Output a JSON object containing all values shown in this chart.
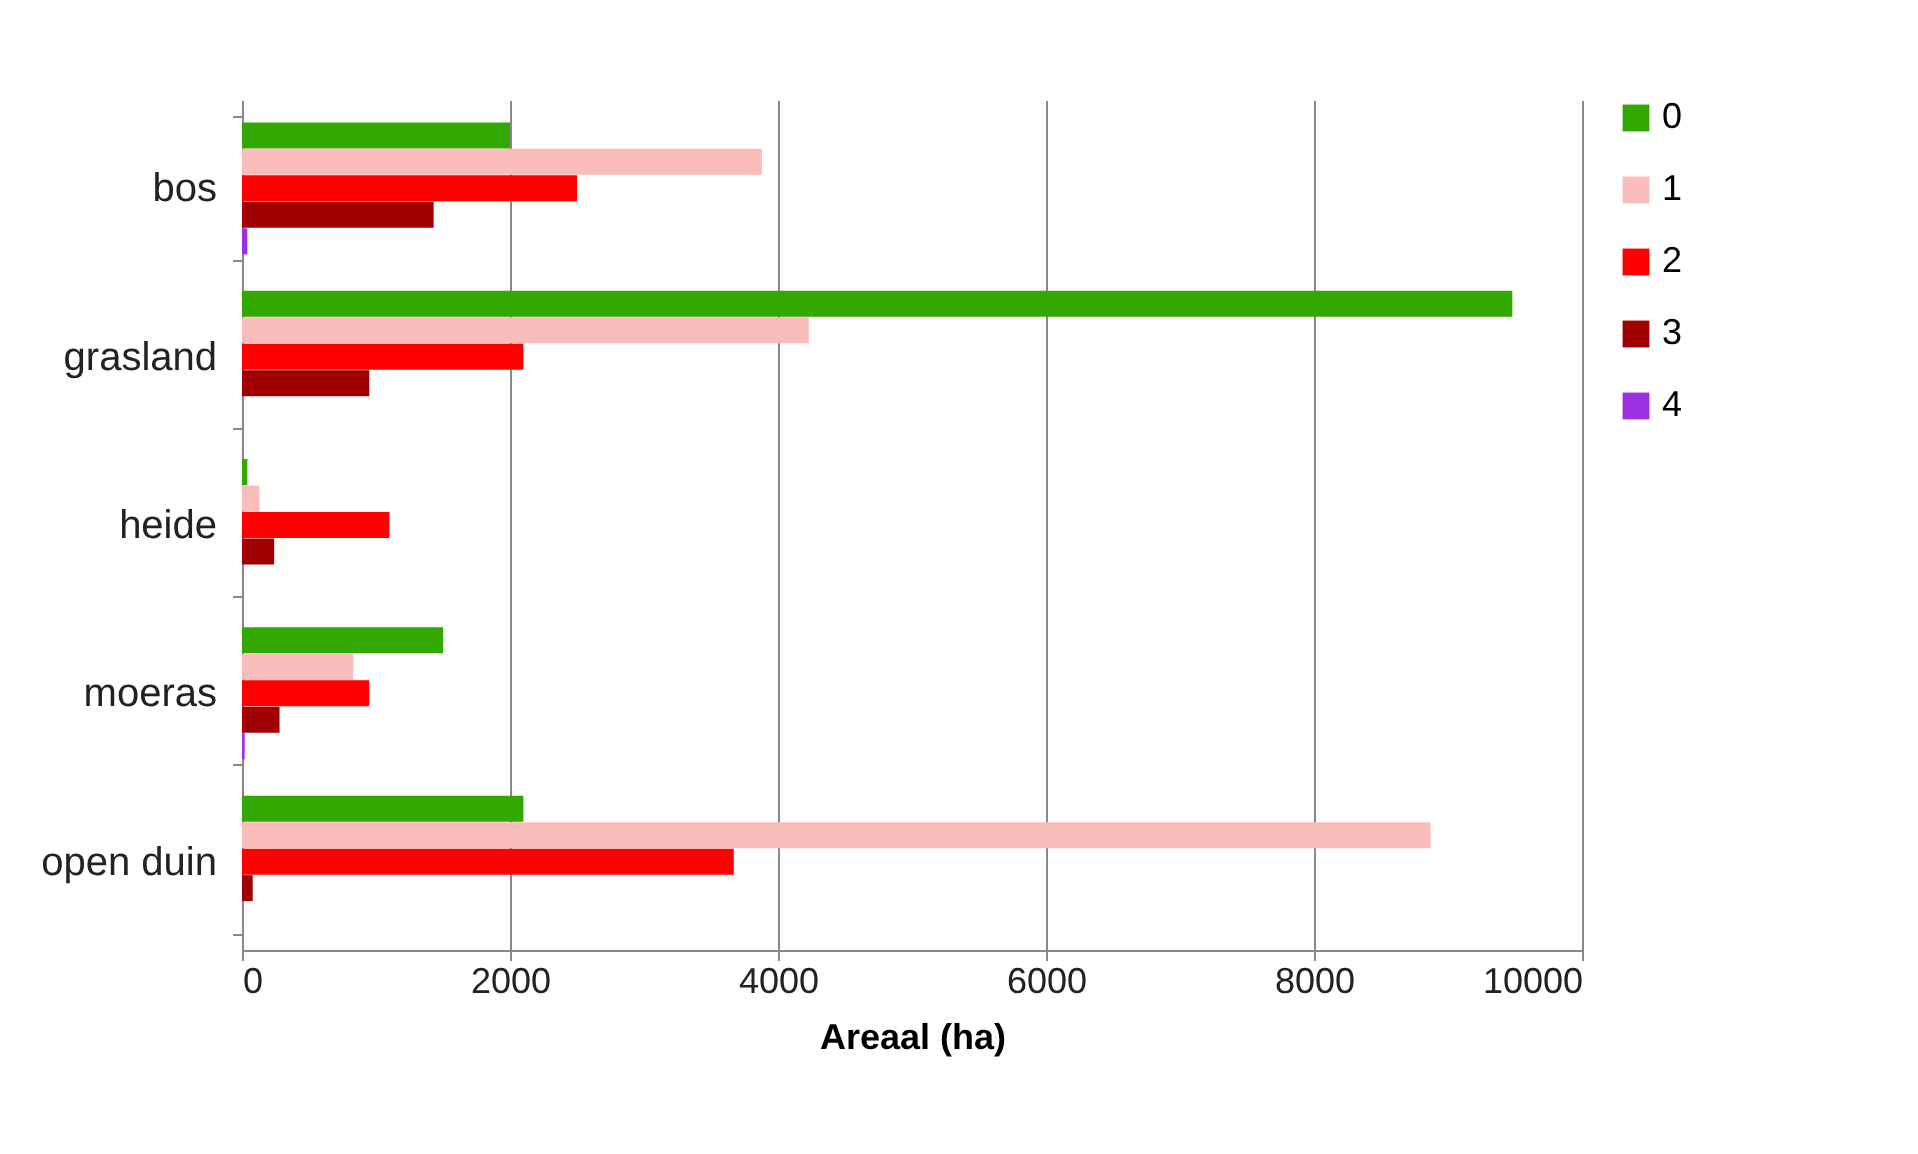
{
  "chart_data": {
    "type": "bar",
    "orientation": "horizontal",
    "xlabel": "Areaal (ha)",
    "categories": [
      "bos",
      "grasland",
      "heide",
      "moeras",
      "open duin"
    ],
    "series": [
      {
        "name": "0",
        "color": "#33a800",
        "values": [
          2000,
          9480,
          40,
          1500,
          2100
        ]
      },
      {
        "name": "1",
        "color": "#fbbcbc",
        "values": [
          3880,
          4230,
          130,
          830,
          8870
        ]
      },
      {
        "name": "2",
        "color": "#ff0000",
        "values": [
          2500,
          2100,
          1100,
          950,
          3670
        ]
      },
      {
        "name": "3",
        "color": "#a00000",
        "values": [
          1430,
          950,
          240,
          280,
          80
        ]
      },
      {
        "name": "4",
        "color": "#9b30e0",
        "values": [
          40,
          0,
          0,
          20,
          0
        ]
      }
    ],
    "xlim": [
      0,
      10000
    ],
    "xticks": [
      0,
      2000,
      4000,
      6000,
      8000,
      10000
    ],
    "grid": "x",
    "legend": "right"
  }
}
